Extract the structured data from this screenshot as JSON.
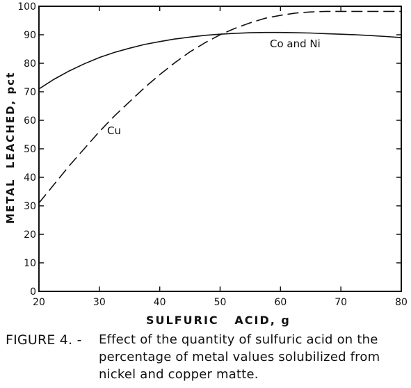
{
  "chart_data": {
    "type": "line",
    "xlabel": "SULFURIC   ACID, g",
    "ylabel": "METAL  LEACHED, pct",
    "xlim": [
      20,
      80
    ],
    "ylim": [
      0,
      100
    ],
    "x_ticks": [
      20,
      30,
      40,
      50,
      60,
      70,
      80
    ],
    "y_ticks": [
      0,
      10,
      20,
      30,
      40,
      50,
      60,
      70,
      80,
      90,
      100
    ],
    "grid": false,
    "series": [
      {
        "name": "Co and Ni",
        "style": "solid",
        "x": [
          20,
          22.5,
          25,
          27.5,
          30,
          32.5,
          35,
          37.5,
          40,
          42.5,
          45,
          47.5,
          50,
          52.5,
          55,
          57.5,
          60,
          62.5,
          65,
          67.5,
          70,
          72.5,
          75,
          77.5,
          80
        ],
        "y": [
          71,
          74.4,
          77.3,
          79.8,
          82,
          83.8,
          85.3,
          86.6,
          87.6,
          88.5,
          89.2,
          89.8,
          90.2,
          90.5,
          90.7,
          90.8,
          90.8,
          90.7,
          90.6,
          90.4,
          90.2,
          90,
          89.7,
          89.4,
          89
        ]
      },
      {
        "name": "Cu",
        "style": "dashed",
        "x": [
          20,
          22.5,
          25,
          27.5,
          30,
          32.5,
          35,
          37.5,
          40,
          42.5,
          45,
          47.5,
          50,
          52.5,
          55,
          57.5,
          60,
          62.5,
          65,
          67.5,
          70,
          72.5,
          75,
          77.5,
          80
        ],
        "y": [
          31,
          37.5,
          44,
          50,
          56,
          61.5,
          66.5,
          71.5,
          76,
          80.2,
          84,
          87.2,
          90,
          92.3,
          94.2,
          95.8,
          96.8,
          97.6,
          98,
          98.2,
          98.2,
          98.2,
          98.2,
          98.2,
          98.2
        ]
      }
    ],
    "annotations": [
      "Co and Ni",
      "Cu"
    ]
  },
  "caption": {
    "lead": "FIGURE 4. -",
    "lines": [
      "Effect of the quantity of sulfuric acid on the",
      "percentage of metal values solubilized from",
      "nickel and copper matte."
    ]
  }
}
